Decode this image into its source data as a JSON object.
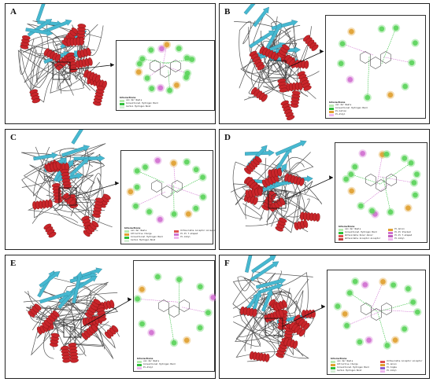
{
  "panels": [
    {
      "letter": "A",
      "legend_title": "Interactions",
      "legend": [
        {
          "label": "van der Waals",
          "color": "#b8eab0"
        },
        {
          "label": "Conventional Hydrogen Bond",
          "color": "#2fbf3a"
        },
        {
          "label": "Carbon Hydrogen Bond",
          "color": "#d6f0d6"
        }
      ]
    },
    {
      "letter": "B",
      "legend_title": "Interactions",
      "legend": [
        {
          "label": "van der Waals",
          "color": "#b8eab0"
        },
        {
          "label": "Conventional Hydrogen Bond",
          "color": "#2fbf3a"
        },
        {
          "label": "Pi-Cation",
          "color": "#e0a030"
        },
        {
          "label": "Pi-Alkyl",
          "color": "#f0b8f0"
        }
      ]
    },
    {
      "letter": "C",
      "legend_title": "Interactions",
      "legend": [
        {
          "label": "van der Waals",
          "color": "#b8eab0"
        },
        {
          "label": "Attractive Charge",
          "color": "#e0a030"
        },
        {
          "label": "Conventional Hydrogen Bond",
          "color": "#2fbf3a"
        },
        {
          "label": "Carbon Hydrogen Bond",
          "color": "#d6f0d6"
        },
        {
          "label": "Unfavorable Acceptor-Acceptor",
          "color": "#e05050"
        },
        {
          "label": "Pi-Pi T-shaped",
          "color": "#d070d0"
        },
        {
          "label": "Pi-Alkyl",
          "color": "#f0b8f0"
        }
      ]
    },
    {
      "letter": "D",
      "legend_title": "Interactions",
      "legend": [
        {
          "label": "van der Waals",
          "color": "#b8eab0"
        },
        {
          "label": "Conventional Hydrogen Bond",
          "color": "#2fbf3a"
        },
        {
          "label": "Unfavorable Donor-Donor",
          "color": "#e05050"
        },
        {
          "label": "Unfavorable Acceptor-Acceptor",
          "color": "#c04040"
        },
        {
          "label": "Pi-Anion",
          "color": "#e0a030"
        },
        {
          "label": "Pi-Pi Stacked",
          "color": "#d070d0"
        },
        {
          "label": "Pi-Pi T-shaped",
          "color": "#c060c0"
        },
        {
          "label": "Pi-Alkyl",
          "color": "#f0b8f0"
        }
      ]
    },
    {
      "letter": "E",
      "legend_title": "Interactions",
      "legend": [
        {
          "label": "van der Waals",
          "color": "#b8eab0"
        },
        {
          "label": "Conventional Hydrogen Bond",
          "color": "#2fbf3a"
        },
        {
          "label": "Pi-Alkyl",
          "color": "#f0b8f0"
        }
      ]
    },
    {
      "letter": "F",
      "legend_title": "Interactions",
      "legend": [
        {
          "label": "van der Waals",
          "color": "#b8eab0"
        },
        {
          "label": "Attractive Charge",
          "color": "#e0a030"
        },
        {
          "label": "Conventional Hydrogen Bond",
          "color": "#2fbf3a"
        },
        {
          "label": "Carbon Hydrogen Bond",
          "color": "#d6f0d6"
        },
        {
          "label": "Unfavorable Acceptor-Acceptor",
          "color": "#e05050"
        },
        {
          "label": "Pi-Anion",
          "color": "#e0a030"
        },
        {
          "label": "Pi-Sigma",
          "color": "#9060d0"
        },
        {
          "label": "Pi-Alkyl",
          "color": "#f0b8f0"
        }
      ]
    }
  ],
  "colors": {
    "helix": "#c8252a",
    "sheet": "#46b8d0",
    "loop": "#555555",
    "residue": "#5ad35a",
    "hbond": "#2fbf3a",
    "pi": "#d070d0",
    "charge": "#e0a030",
    "unfavorable": "#e05050"
  }
}
